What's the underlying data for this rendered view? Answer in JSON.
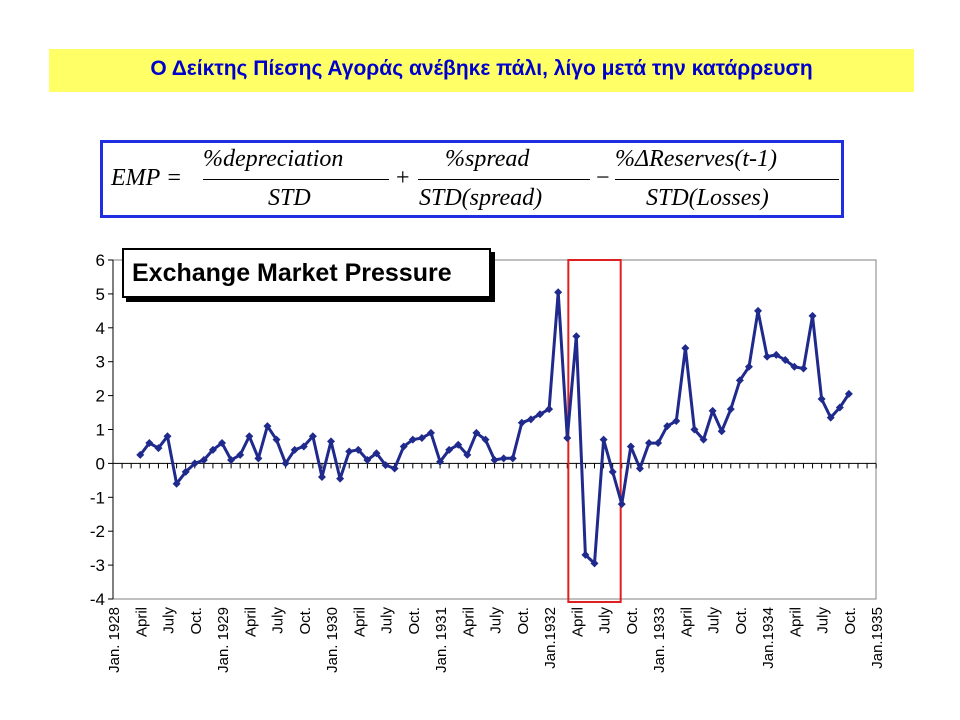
{
  "title": "Ο Δείκτης Πίεσης Αγοράς ανέβηκε πάλι, λίγο μετά την κατάρρευση",
  "formula": {
    "lhs": "EMP =",
    "term1_num": "%depreciation",
    "term1_den": "STD",
    "op1": "+",
    "term2_num": "%spread",
    "term2_den": "STD(spread)",
    "op2": "−",
    "term3_num": "%ΔReserves(t-1)",
    "term3_den": "STD(Losses)"
  },
  "colors": {
    "title_bg": "#ffff66",
    "title_text": "#0000cc",
    "formula_border": "#1f2ee0",
    "series": "#1f2a8c",
    "highlight": "#e02020"
  },
  "chart_data": {
    "type": "line",
    "title": "Exchange Market Pressure",
    "xlabel": "",
    "ylabel": "",
    "ylim": [
      -4,
      6
    ],
    "yticks": [
      "6",
      "5",
      "4",
      "3",
      "2",
      "1",
      "0",
      "-1",
      "-2",
      "-3",
      "-4"
    ],
    "xtick_labels": [
      "Jan. 1928",
      "April",
      "July",
      "Oct.",
      "Jan. 1929",
      "April",
      "July",
      "Oct.",
      "Jan. 1930",
      "April",
      "July",
      "Oct.",
      "Jan. 1931",
      "April",
      "July",
      "Oct.",
      "Jan.1932",
      "April",
      "July",
      "Oct.",
      "Jan. 1933",
      "April",
      "July",
      "Oct.",
      "Jan.1934",
      "April",
      "July",
      "Oct.",
      "Jan.1935"
    ],
    "x_start": "1928-01",
    "grid": false,
    "highlight_months": [
      "1932-04",
      "1932-08"
    ],
    "series": [
      {
        "start": "1928-04",
        "values": [
          0.25,
          0.6,
          0.45,
          0.8,
          -0.6,
          -0.25,
          0.0,
          0.1,
          0.4,
          0.6,
          0.1,
          0.25,
          0.8,
          0.15,
          1.1,
          0.7,
          0.0,
          0.4,
          0.5,
          0.8,
          -0.4,
          0.65,
          -0.45,
          0.35,
          0.4,
          0.1,
          0.3,
          -0.05,
          -0.15,
          0.5,
          0.7,
          0.75,
          0.9,
          0.05,
          0.4,
          0.55,
          0.25,
          0.9,
          0.7,
          0.1,
          0.15,
          0.15,
          1.2,
          1.3,
          1.45,
          1.6,
          5.05,
          0.75,
          3.75,
          -2.7,
          -2.95,
          0.7,
          -0.25,
          -1.2,
          0.5,
          -0.15,
          0.6,
          0.6,
          1.1,
          1.25,
          3.4,
          1.0,
          0.7,
          1.55,
          0.95,
          1.6,
          2.45,
          2.85,
          4.5,
          3.15,
          3.2,
          3.05,
          2.85,
          2.8,
          4.35,
          1.9,
          1.35,
          1.65,
          2.05
        ]
      }
    ]
  }
}
